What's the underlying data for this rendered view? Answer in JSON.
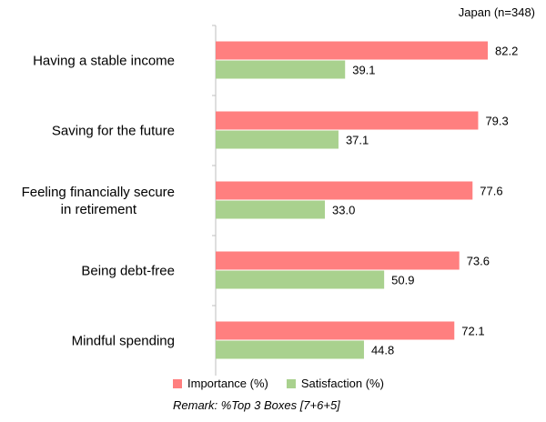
{
  "chart_data": {
    "type": "bar",
    "orientation": "horizontal",
    "subtitle": "Japan (n=348)",
    "categories": [
      "Having a stable income",
      "Saving for the future",
      "Feeling financially secure in retirement",
      "Being debt-free",
      "Mindful spending"
    ],
    "series": [
      {
        "name": "Importance (%)",
        "color": "#ff7f7f",
        "values": [
          82.2,
          79.3,
          77.6,
          73.6,
          72.1
        ]
      },
      {
        "name": "Satisfaction (%)",
        "color": "#a9d18e",
        "values": [
          39.1,
          37.1,
          33.0,
          50.9,
          44.8
        ]
      }
    ],
    "xlim": [
      0,
      100
    ],
    "grid": false,
    "legend_position": "bottom",
    "remark": "Remark: %Top 3 Boxes [7+6+5]"
  }
}
